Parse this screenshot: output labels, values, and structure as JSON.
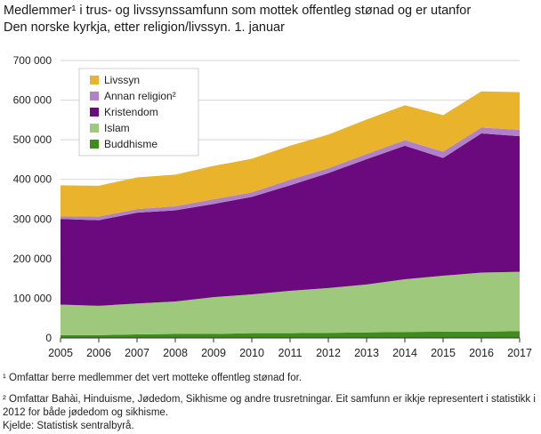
{
  "title_line1": "Medlemmer¹ i trus- og livssynssamfunn som mottek offentleg stønad og er utanfor",
  "title_line2": "Den norske kyrkja, etter religion/livssyn. 1. januar",
  "footnotes": [
    "¹ Omfattar berre medlemmer det vert motteke offentleg stønad for.",
    "² Omfattar Bahài, Hinduisme, Jødedom, Sikhisme og andre trusretningar. Eit samfunn er ikkje representert i statistikk i 2012 for både jødedom og sikhisme.",
    "Kjelde: Statistisk sentralbyrå."
  ],
  "chart_data": {
    "type": "area",
    "stacked": true,
    "x": [
      "2005",
      "2006",
      "2007",
      "2008",
      "2009",
      "2010",
      "2011",
      "2012",
      "2013",
      "2014",
      "2015",
      "2016",
      "2017"
    ],
    "ylim": [
      0,
      700000
    ],
    "yticks": [
      0,
      100000,
      200000,
      300000,
      400000,
      500000,
      600000,
      700000
    ],
    "ytick_labels": [
      "0",
      "100 000",
      "200 000",
      "300 000",
      "400 000",
      "500 000",
      "600 000",
      "700 000"
    ],
    "grid": true,
    "legend_position": "top-left",
    "series": [
      {
        "name": "Buddhisme",
        "color": "#3d8c1c",
        "values": [
          7000,
          7000,
          9000,
          10000,
          10000,
          12000,
          12000,
          13000,
          14000,
          15000,
          16000,
          16000,
          17000
        ]
      },
      {
        "name": "Islam",
        "color": "#9ec97c",
        "values": [
          77000,
          74000,
          78000,
          82000,
          93000,
          98000,
          107000,
          113000,
          121000,
          133000,
          141000,
          149000,
          150000
        ]
      },
      {
        "name": "Kristendom",
        "color": "#6b0a7f",
        "values": [
          216000,
          216000,
          229000,
          230000,
          235000,
          246000,
          266000,
          290000,
          316000,
          337000,
          297000,
          351000,
          342000
        ]
      },
      {
        "name": "Annan religion²",
        "color": "#b080c8",
        "values": [
          7000,
          9000,
          9000,
          10000,
          12000,
          11000,
          14000,
          12000,
          13000,
          14000,
          16000,
          15000,
          16000
        ]
      },
      {
        "name": "Livssyn",
        "color": "#e9b32c",
        "values": [
          78000,
          78000,
          80000,
          80000,
          84000,
          85000,
          86000,
          85000,
          87000,
          88000,
          92000,
          91000,
          95000
        ]
      }
    ]
  }
}
